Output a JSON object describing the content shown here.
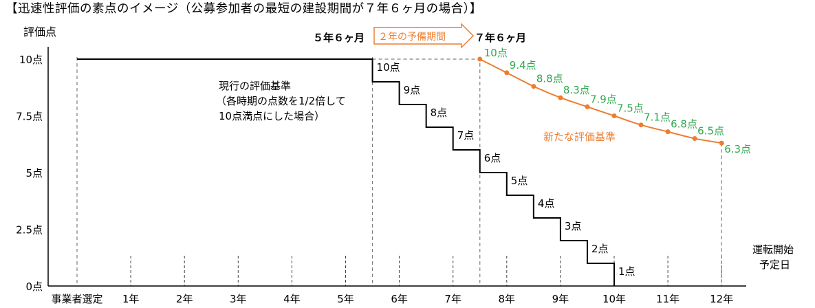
{
  "chart_data": {
    "type": "line",
    "title": "【迅速性評価の素点のイメージ（公募参加者の最短の建設期間が７年６ヶ月の場合）】",
    "ylabel": "評価点",
    "xlabel": "運転開始予定日",
    "ylim": [
      0,
      10
    ],
    "x_tick_labels": [
      {
        "x": 0,
        "label": "事業者選定"
      },
      {
        "x": 1,
        "label": "1年"
      },
      {
        "x": 2,
        "label": "2年"
      },
      {
        "x": 3,
        "label": "3年"
      },
      {
        "x": 4,
        "label": "4年"
      },
      {
        "x": 5,
        "label": "5年"
      },
      {
        "x": 6,
        "label": "6年"
      },
      {
        "x": 7,
        "label": "7年"
      },
      {
        "x": 8,
        "label": "8年"
      },
      {
        "x": 9,
        "label": "9年"
      },
      {
        "x": 10,
        "label": "10年"
      },
      {
        "x": 11,
        "label": "11年"
      },
      {
        "x": 12,
        "label": "12年"
      }
    ],
    "y_tick_labels": [
      {
        "y": 0,
        "label": "0点"
      },
      {
        "y": 2.5,
        "label": "2.5点"
      },
      {
        "y": 5,
        "label": "5点"
      },
      {
        "y": 7.5,
        "label": "7.5点"
      },
      {
        "y": 10,
        "label": "10点"
      }
    ],
    "series": [
      {
        "name": "現行の評価基準",
        "style": "step",
        "color": "#000000",
        "points": [
          {
            "x": 0,
            "y": 10
          },
          {
            "x": 5.5,
            "y": 10
          },
          {
            "x": 5.5,
            "y": 9
          },
          {
            "x": 6,
            "y": 9
          },
          {
            "x": 6,
            "y": 8
          },
          {
            "x": 6.5,
            "y": 8
          },
          {
            "x": 6.5,
            "y": 7
          },
          {
            "x": 7,
            "y": 7
          },
          {
            "x": 7,
            "y": 6
          },
          {
            "x": 7.5,
            "y": 6
          },
          {
            "x": 7.5,
            "y": 5
          },
          {
            "x": 8,
            "y": 5
          },
          {
            "x": 8,
            "y": 4
          },
          {
            "x": 8.5,
            "y": 4
          },
          {
            "x": 8.5,
            "y": 3
          },
          {
            "x": 9,
            "y": 3
          },
          {
            "x": 9,
            "y": 2
          },
          {
            "x": 9.5,
            "y": 2
          },
          {
            "x": 9.5,
            "y": 1
          },
          {
            "x": 10,
            "y": 1
          },
          {
            "x": 10,
            "y": 0
          }
        ],
        "step_labels": [
          {
            "x": 5.5,
            "y": 10,
            "label": "10点"
          },
          {
            "x": 6,
            "y": 9,
            "label": "9点"
          },
          {
            "x": 6.5,
            "y": 8,
            "label": "8点"
          },
          {
            "x": 7,
            "y": 7,
            "label": "7点"
          },
          {
            "x": 7.5,
            "y": 6,
            "label": "6点"
          },
          {
            "x": 8,
            "y": 5,
            "label": "5点"
          },
          {
            "x": 8.5,
            "y": 4,
            "label": "4点"
          },
          {
            "x": 9,
            "y": 3,
            "label": "3点"
          },
          {
            "x": 9.5,
            "y": 2,
            "label": "2点"
          },
          {
            "x": 10,
            "y": 1,
            "label": "1点"
          }
        ]
      },
      {
        "name": "新たな評価基準",
        "style": "curve",
        "color": "#ED7D31",
        "label_color": "#2EA84E",
        "points": [
          {
            "x": 7.5,
            "y": 10,
            "label": "10点"
          },
          {
            "x": 8,
            "y": 9.4,
            "label": "9.4点"
          },
          {
            "x": 8.5,
            "y": 8.8,
            "label": "8.8点"
          },
          {
            "x": 9,
            "y": 8.3,
            "label": "8.3点"
          },
          {
            "x": 9.5,
            "y": 7.9,
            "label": "7.9点"
          },
          {
            "x": 10,
            "y": 7.5,
            "label": "7.5点"
          },
          {
            "x": 10.5,
            "y": 7.1,
            "label": "7.1点"
          },
          {
            "x": 11,
            "y": 6.8,
            "label": "6.8点"
          },
          {
            "x": 11.5,
            "y": 6.5,
            "label": "6.5点"
          },
          {
            "x": 12,
            "y": 6.3,
            "label": "6.3点"
          }
        ]
      }
    ],
    "annotations": {
      "current_line1": "現行の評価基準",
      "current_line2": "（各時期の点数を1/2倍して",
      "current_line3": "10点満点にした場合）",
      "new_label": "新たな評価基準",
      "marker_left": "５年６ヶ月",
      "marker_right": "７年６ヶ月",
      "arrow_label": "２年の予備期間",
      "xlabel_line1": "運転開始",
      "xlabel_line2": "予定日"
    },
    "colors": {
      "orange": "#ED7D31",
      "green": "#2EA84E",
      "dashed": "#808080",
      "tick": "#404040"
    },
    "grid": false
  }
}
